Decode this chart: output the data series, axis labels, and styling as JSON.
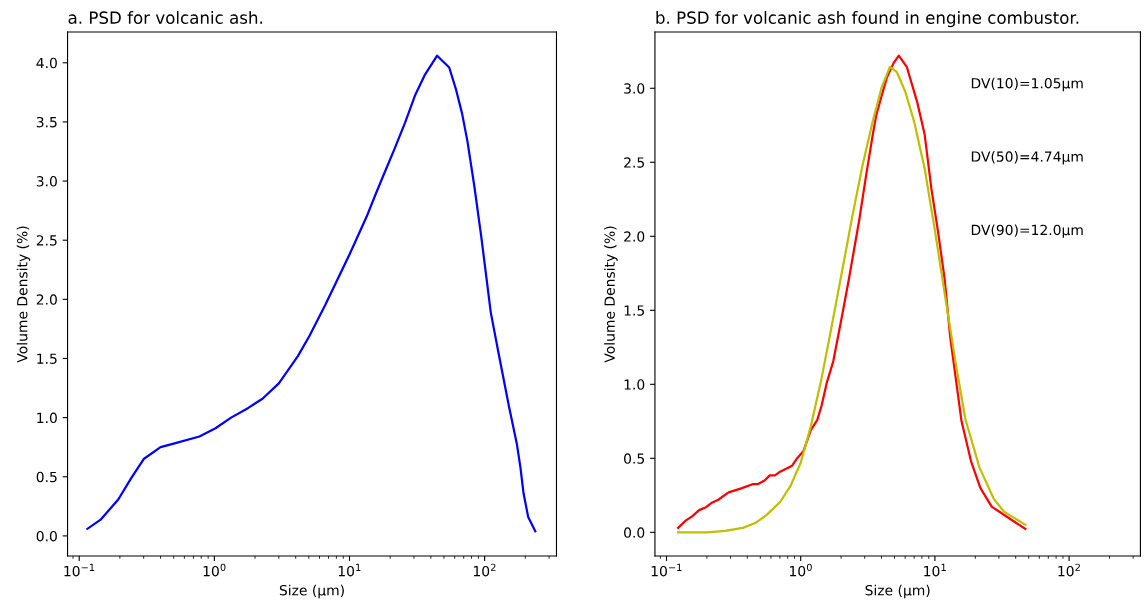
{
  "chart_data": [
    {
      "type": "line",
      "title": "a. PSD for volcanic ash.",
      "xlabel": "Size (μm)",
      "ylabel": "Volume Density (%)",
      "log": "x",
      "xlim": [
        0.082,
        340
      ],
      "ylim": [
        -0.17,
        4.26
      ],
      "xticks": [
        {
          "value": 0.1,
          "label": "10$^{−1}$"
        },
        {
          "value": 1,
          "label": "10$^{0}$"
        },
        {
          "value": 10,
          "label": "10$^{1}$"
        },
        {
          "value": 100,
          "label": "10$^{2}$"
        }
      ],
      "yticks": [
        {
          "value": 0,
          "label": "0.0"
        },
        0.5,
        {
          "value": 1,
          "label": "1.0"
        },
        1.5,
        {
          "value": 2,
          "label": "2.0"
        },
        2.5,
        {
          "value": 3,
          "label": "3.0"
        },
        3.5,
        {
          "value": 4,
          "label": "4.0"
        }
      ],
      "series": [
        {
          "color": "#0000ff",
          "x": [
            0.115,
            0.145,
            0.195,
            0.24,
            0.3,
            0.4,
            0.5,
            0.775,
            1.02,
            1.33,
            1.77,
            2.27,
            3.0,
            4.15,
            5.05,
            6.6,
            10.0,
            13.4,
            15.5,
            18.0,
            21.5,
            25.7,
            30.7,
            36.2,
            44.5,
            54.7,
            61.2,
            68.1,
            74.5,
            83.8,
            94.4,
            111,
            127,
            151,
            173,
            184,
            194,
            210,
            237
          ],
          "values": [
            0.06,
            0.14,
            0.31,
            0.48,
            0.65,
            0.75,
            0.78,
            0.84,
            0.91,
            1.0,
            1.08,
            1.16,
            1.29,
            1.52,
            1.69,
            1.95,
            2.38,
            2.7,
            2.88,
            3.06,
            3.27,
            3.49,
            3.73,
            3.9,
            4.06,
            3.96,
            3.78,
            3.57,
            3.34,
            2.96,
            2.53,
            1.89,
            1.54,
            1.1,
            0.78,
            0.58,
            0.36,
            0.16,
            0.04
          ]
        }
      ]
    },
    {
      "type": "line",
      "title": "b. PSD for volcanic ash found in engine combustor.",
      "xlabel": "Size (μm)",
      "ylabel": "Volume Density (%)",
      "log": "x",
      "xlim": [
        0.082,
        340
      ],
      "ylim": [
        -0.16,
        3.38
      ],
      "xticks": [
        {
          "value": 0.1,
          "label": "10$^{−1}$"
        },
        {
          "value": 1,
          "label": "10$^{0}$"
        },
        {
          "value": 10,
          "label": "10$^{1}$"
        },
        {
          "value": 100,
          "label": "10$^{2}$"
        }
      ],
      "yticks": [
        {
          "value": 0,
          "label": "0.0"
        },
        0.5,
        {
          "value": 1,
          "label": "1.0"
        },
        1.5,
        {
          "value": 2,
          "label": "2.0"
        },
        2.5,
        {
          "value": 3,
          "label": "3.0"
        }
      ],
      "annotations": [
        "DV(10)=1.05μm",
        "DV(50)=4.74μm",
        "DV(90)=12.0μm"
      ],
      "series": [
        {
          "color": "#ff0000",
          "x": [
            0.122,
            0.138,
            0.156,
            0.175,
            0.197,
            0.218,
            0.243,
            0.29,
            0.356,
            0.438,
            0.478,
            0.538,
            0.588,
            0.643,
            0.702,
            0.863,
            0.931,
            1.05,
            1.19,
            1.33,
            1.43,
            1.56,
            1.75,
            2.03,
            2.29,
            2.73,
            3.07,
            3.45,
            3.66,
            4.01,
            4.38,
            4.92,
            5.38,
            6.17,
            7.36,
            8.38,
            9.42,
            10.6,
            11.8,
            13.0,
            15.8,
            18.6,
            21.8,
            26.5,
            33.5,
            47.2
          ],
          "values": [
            0.03,
            0.077,
            0.11,
            0.15,
            0.17,
            0.2,
            0.22,
            0.27,
            0.295,
            0.325,
            0.325,
            0.35,
            0.385,
            0.385,
            0.41,
            0.45,
            0.495,
            0.55,
            0.69,
            0.76,
            0.855,
            1.006,
            1.157,
            1.46,
            1.715,
            2.11,
            2.41,
            2.69,
            2.82,
            2.95,
            3.07,
            3.17,
            3.22,
            3.145,
            2.91,
            2.69,
            2.32,
            2.02,
            1.715,
            1.32,
            0.75,
            0.48,
            0.3,
            0.174,
            0.112,
            0.023
          ]
        },
        {
          "color": "#bfbf00",
          "x": [
            0.122,
            0.203,
            0.273,
            0.37,
            0.464,
            0.555,
            0.702,
            0.836,
            1.0,
            1.19,
            1.43,
            1.7,
            2.03,
            2.42,
            2.89,
            3.45,
            4.01,
            4.62,
            5.2,
            6.0,
            6.98,
            8.38,
            10.0,
            11.9,
            14.2,
            16.9,
            21.5,
            27.4,
            32.7,
            47.2
          ],
          "values": [
            0.0,
            0.0,
            0.01,
            0.03,
            0.065,
            0.116,
            0.205,
            0.31,
            0.47,
            0.716,
            1.04,
            1.39,
            1.76,
            2.13,
            2.48,
            2.78,
            3.005,
            3.145,
            3.11,
            2.98,
            2.78,
            2.46,
            2.04,
            1.6,
            1.157,
            0.762,
            0.437,
            0.228,
            0.14,
            0.051
          ]
        }
      ]
    }
  ]
}
